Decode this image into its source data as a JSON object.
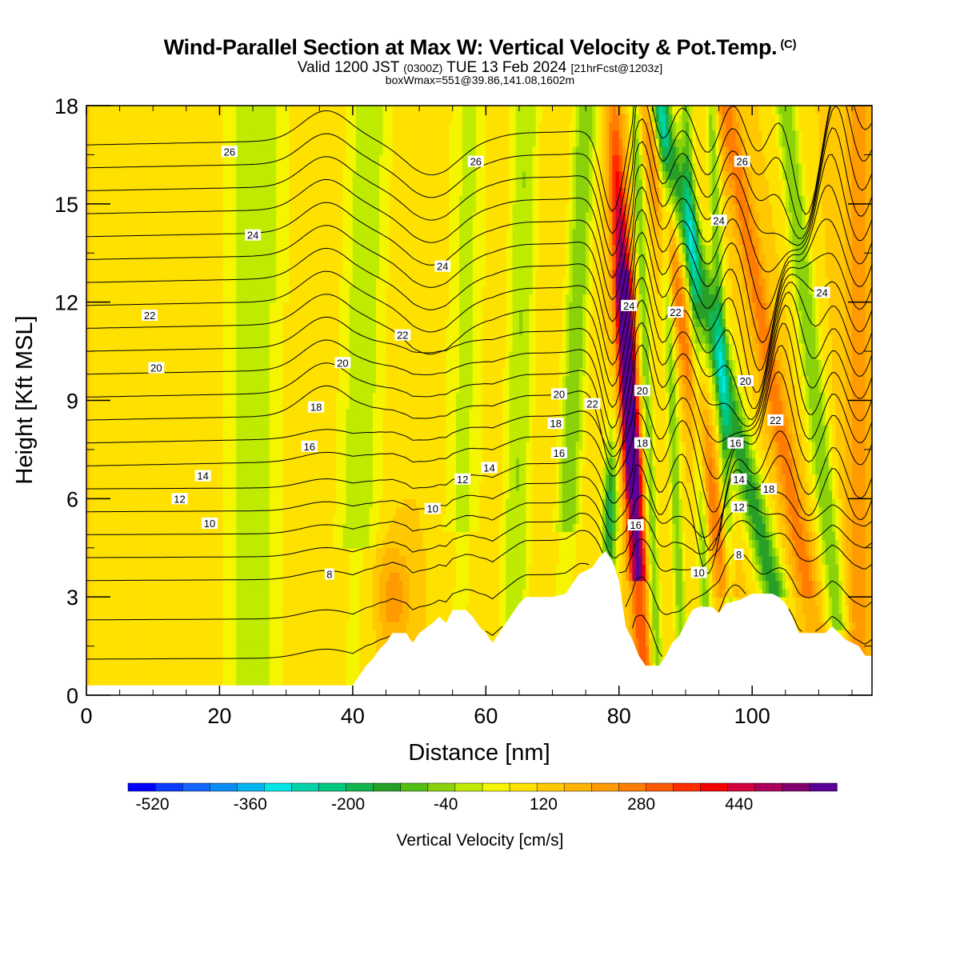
{
  "header": {
    "title": "Wind-Parallel Section at Max W: Vertical Velocity & Pot.Temp.",
    "copyright": "(C)",
    "valid_prefix": "Valid 1200 JST",
    "valid_utc": "(0300Z)",
    "valid_date": "TUE 13 Feb 2024",
    "forecast": "[21hrFcst@1203z]",
    "box_info": "boxWmax=551@39.86,141.08,1602m"
  },
  "chart_data": {
    "type": "heatmap",
    "xlabel": "Distance [nm]",
    "ylabel": "Height [Kft MSL]",
    "xlim": [
      0,
      118
    ],
    "ylim": [
      0,
      18
    ],
    "x_ticks": [
      0,
      20,
      40,
      60,
      80,
      100
    ],
    "y_ticks": [
      0,
      3,
      6,
      9,
      12,
      15,
      18
    ],
    "colorbar": {
      "label": "Vertical Velocity [cm/s]",
      "min": -560,
      "max": 600,
      "step": 40,
      "tick_values": [
        -520,
        -360,
        -200,
        -40,
        120,
        280,
        440
      ],
      "tick_labels": [
        "-520",
        "-360",
        "-200",
        "-40",
        "120",
        "280",
        "440"
      ],
      "colors": [
        "#0000ff",
        "#0a3cff",
        "#1464ff",
        "#0a8cf5",
        "#00b4f0",
        "#00e6e6",
        "#00d2aa",
        "#00c880",
        "#14b450",
        "#28a028",
        "#55be14",
        "#8cd20a",
        "#beeb00",
        "#f5f500",
        "#ffe100",
        "#ffc800",
        "#ffb400",
        "#ff9b00",
        "#ff7d00",
        "#ff5a00",
        "#ff2d00",
        "#f50000",
        "#d2003c",
        "#aa005a",
        "#82006e",
        "#5a0096"
      ]
    },
    "terrain_kft": [
      [
        0,
        0.3
      ],
      [
        40,
        0.3
      ],
      [
        41,
        0.6
      ],
      [
        42,
        0.9
      ],
      [
        43,
        1.1
      ],
      [
        44,
        1.4
      ],
      [
        45,
        1.6
      ],
      [
        46,
        1.9
      ],
      [
        48,
        1.9
      ],
      [
        49,
        1.6
      ],
      [
        50,
        1.9
      ],
      [
        52,
        2.2
      ],
      [
        53,
        2.4
      ],
      [
        54,
        2.2
      ],
      [
        55,
        2.6
      ],
      [
        57,
        2.6
      ],
      [
        58,
        2.4
      ],
      [
        59,
        2.1
      ],
      [
        60,
        1.9
      ],
      [
        61,
        1.6
      ],
      [
        62,
        1.9
      ],
      [
        63,
        2.2
      ],
      [
        64,
        2.5
      ],
      [
        65,
        2.8
      ],
      [
        66,
        3.0
      ],
      [
        70,
        3.0
      ],
      [
        72,
        3.1
      ],
      [
        73,
        3.4
      ],
      [
        74,
        3.7
      ],
      [
        76,
        3.9
      ],
      [
        77,
        4.2
      ],
      [
        78,
        4.4
      ],
      [
        79,
        4.1
      ],
      [
        80,
        3.5
      ],
      [
        81,
        2.1
      ],
      [
        82,
        1.7
      ],
      [
        83,
        1.2
      ],
      [
        84,
        0.9
      ],
      [
        86,
        0.9
      ],
      [
        87,
        1.2
      ],
      [
        88,
        1.6
      ],
      [
        89,
        1.8
      ],
      [
        90,
        2.2
      ],
      [
        91,
        2.6
      ],
      [
        92,
        2.7
      ],
      [
        94,
        2.7
      ],
      [
        95,
        2.5
      ],
      [
        96,
        2.8
      ],
      [
        98,
        2.9
      ],
      [
        99,
        3.0
      ],
      [
        100,
        3.1
      ],
      [
        103,
        3.1
      ],
      [
        104,
        3.0
      ],
      [
        105,
        2.8
      ],
      [
        106,
        2.4
      ],
      [
        107,
        1.9
      ],
      [
        111,
        1.9
      ],
      [
        112,
        2.1
      ],
      [
        114,
        1.7
      ],
      [
        116,
        1.5
      ],
      [
        117,
        1.2
      ],
      [
        118,
        1.2
      ]
    ],
    "theta_levels": [
      6,
      7,
      8,
      9,
      10,
      11,
      12,
      13,
      14,
      15,
      16,
      17,
      18,
      19,
      20,
      21,
      22,
      23,
      24,
      25,
      26,
      27
    ],
    "contour_labels": [
      {
        "v": "26",
        "x": 21.5,
        "y": 16.6
      },
      {
        "v": "26",
        "x": 58.5,
        "y": 16.3
      },
      {
        "v": "26",
        "x": 98.5,
        "y": 16.3
      },
      {
        "v": "24",
        "x": 25,
        "y": 14.05
      },
      {
        "v": "24",
        "x": 53.5,
        "y": 13.1
      },
      {
        "v": "24",
        "x": 95,
        "y": 14.5
      },
      {
        "v": "24",
        "x": 81.5,
        "y": 11.9
      },
      {
        "v": "24",
        "x": 110.5,
        "y": 12.3
      },
      {
        "v": "22",
        "x": 9.5,
        "y": 11.6
      },
      {
        "v": "22",
        "x": 47.5,
        "y": 11.0
      },
      {
        "v": "22",
        "x": 88.5,
        "y": 11.7
      },
      {
        "v": "22",
        "x": 76,
        "y": 8.9
      },
      {
        "v": "22",
        "x": 103.5,
        "y": 8.4
      },
      {
        "v": "20",
        "x": 10.5,
        "y": 10.0
      },
      {
        "v": "20",
        "x": 38.5,
        "y": 10.15
      },
      {
        "v": "20",
        "x": 71,
        "y": 9.2
      },
      {
        "v": "20",
        "x": 83.5,
        "y": 9.3
      },
      {
        "v": "20",
        "x": 99,
        "y": 9.6
      },
      {
        "v": "18",
        "x": 34.5,
        "y": 8.8
      },
      {
        "v": "18",
        "x": 70.5,
        "y": 8.3
      },
      {
        "v": "18",
        "x": 83.5,
        "y": 7.7
      },
      {
        "v": "18",
        "x": 102.5,
        "y": 6.3
      },
      {
        "v": "16",
        "x": 33.5,
        "y": 7.6
      },
      {
        "v": "16",
        "x": 71,
        "y": 7.4
      },
      {
        "v": "16",
        "x": 97.5,
        "y": 7.7
      },
      {
        "v": "16",
        "x": 82.5,
        "y": 5.2
      },
      {
        "v": "14",
        "x": 17.5,
        "y": 6.7
      },
      {
        "v": "14",
        "x": 60.5,
        "y": 6.95
      },
      {
        "v": "14",
        "x": 98,
        "y": 6.6
      },
      {
        "v": "12",
        "x": 14,
        "y": 6.0
      },
      {
        "v": "12",
        "x": 56.5,
        "y": 6.6
      },
      {
        "v": "12",
        "x": 98,
        "y": 5.75
      },
      {
        "v": "10",
        "x": 18.5,
        "y": 5.25
      },
      {
        "v": "10",
        "x": 52,
        "y": 5.7
      },
      {
        "v": "10",
        "x": 92,
        "y": 3.75
      },
      {
        "v": "8",
        "x": 36.5,
        "y": 3.7
      },
      {
        "v": "8",
        "x": 98,
        "y": 4.3
      }
    ]
  }
}
